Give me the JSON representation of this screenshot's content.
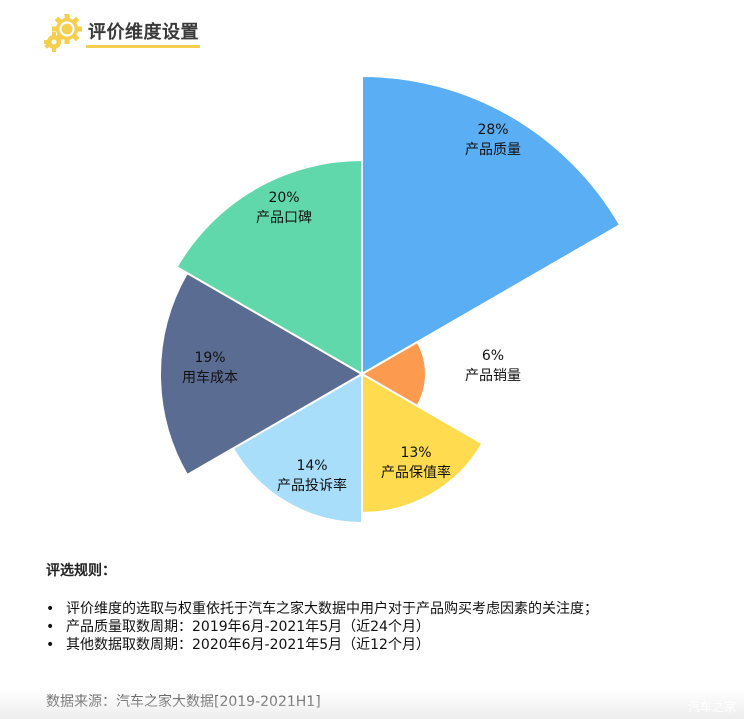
{
  "header": {
    "title": "评价维度设置",
    "icon": "gear-icon",
    "accent_color": "#f5cf4d"
  },
  "chart_data": {
    "type": "pie",
    "subtype": "nightingale-rose (equal angles, radius proportional to weight)",
    "title": "评价维度设置",
    "center": [
      362,
      374
    ],
    "start_angle_deg": 0,
    "direction": "clockwise",
    "slices": [
      {
        "name": "产品质量",
        "value": 28,
        "label": "28%",
        "color": "#5aaef3",
        "radius": 298
      },
      {
        "name": "产品销量",
        "value": 6,
        "label": "6%",
        "color": "#fc9a4f",
        "radius": 64
      },
      {
        "name": "产品保值率",
        "value": 13,
        "label": "13%",
        "color": "#fedb4f",
        "radius": 139
      },
      {
        "name": "产品投诉率",
        "value": 14,
        "label": "14%",
        "color": "#a9defb",
        "radius": 149
      },
      {
        "name": "用车成本",
        "value": 19,
        "label": "19%",
        "color": "#5b6c92",
        "radius": 202
      },
      {
        "name": "产品口碑",
        "value": 20,
        "label": "20%",
        "color": "#60d8ab",
        "radius": 214
      }
    ],
    "categories": [
      "产品质量",
      "产品销量",
      "产品保值率",
      "产品投诉率",
      "用车成本",
      "产品口碑"
    ],
    "values": [
      28,
      6,
      13,
      14,
      19,
      20
    ],
    "label_positions": [
      [
        493,
        140
      ],
      [
        493,
        366
      ],
      [
        416,
        463
      ],
      [
        312,
        476
      ],
      [
        210,
        368
      ],
      [
        284,
        208
      ]
    ]
  },
  "rules": {
    "heading": "评选规则：",
    "bullet": "•",
    "items": [
      "评价维度的选取与权重依托于汽车之家大数据中用户对于产品购买考虑因素的关注度；",
      "产品质量取数周期：2019年6月-2021年5月（近24个月）",
      "其他数据取数周期：2020年6月-2021年5月（近12个月）"
    ]
  },
  "source": "数据来源：汽车之家大数据[2019-2021H1]",
  "watermark": "汽车之家"
}
